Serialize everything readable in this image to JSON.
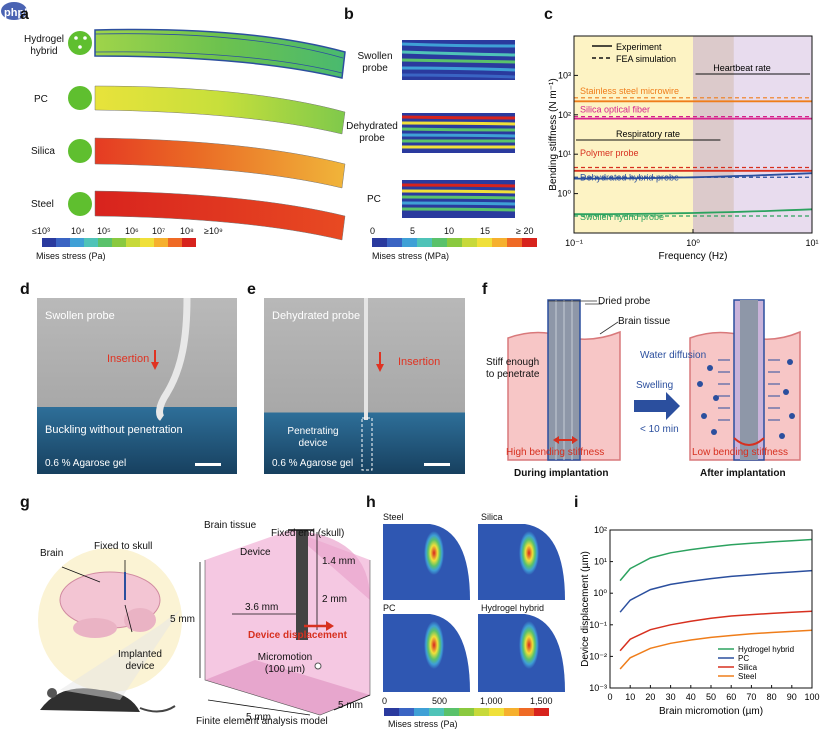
{
  "watermark": "php中文网",
  "panels": {
    "a": {
      "label": "a",
      "rows": [
        "Hydrogel hybrid",
        "PC",
        "Silica",
        "Steel"
      ],
      "colorbar_ticks": [
        "≤10³",
        "10⁴",
        "10⁵",
        "10⁶",
        "10⁷",
        "10⁸",
        "≥10⁹"
      ],
      "colorbar_title": "Mises stress (Pa)"
    },
    "b": {
      "label": "b",
      "rows": [
        "Swollen probe",
        "Dehydrated probe",
        "PC"
      ],
      "colorbar_ticks": [
        "0",
        "5",
        "10",
        "15",
        "≥ 20"
      ],
      "colorbar_title": "Mises stress (MPa)"
    },
    "c": {
      "label": "c"
    },
    "d": {
      "label": "d",
      "title": "Swollen probe",
      "insertion": "Insertion",
      "buckling": "Buckling without penetration",
      "gel": "0.6 % Agarose gel"
    },
    "e": {
      "label": "e",
      "title": "Dehydrated probe",
      "insertion": "Insertion",
      "device": "Penetrating device",
      "gel": "0.6 % Agarose gel"
    },
    "f": {
      "label": "f",
      "dried_probe": "Dried probe",
      "brain_tissue": "Brain tissue",
      "stiff": "Stiff enough to penetrate",
      "water": "Water diffusion",
      "swelling": "Swelling",
      "time": "< 10 min",
      "high": "High bending stiffness",
      "low": "Low bending stiffness",
      "during": "During implantation",
      "after": "After implantation"
    },
    "g": {
      "label": "g",
      "brain_tissue": "Brain tissue",
      "brain": "Brain",
      "fixed_skull": "Fixed to skull",
      "fixed_end": "Fixed end (skull)",
      "device": "Device",
      "d1": "1.4 mm",
      "d2": "2 mm",
      "d3": "3.6 mm",
      "d5a": "5 mm",
      "d5b": "5 mm",
      "d5c": "5 mm",
      "displacement": "Device displacement",
      "implanted": "Implanted device",
      "micromotion": "Micromotion (100 µm)",
      "caption": "Finite element analysis model"
    },
    "h": {
      "label": "h",
      "names": [
        "Steel",
        "Silica",
        "PC",
        "Hydrogel hybrid"
      ],
      "ticks": [
        "0",
        "500",
        "1,000",
        "1,500"
      ],
      "colorbar_title": "Mises stress (Pa)"
    },
    "i": {
      "label": "i"
    }
  },
  "colors": {
    "green": "#2ca25f",
    "blue": "#2b4f9e",
    "red": "#d7301f",
    "orange": "#ef7d1a",
    "magenta": "#d6238d",
    "respiratory": "#fdf3c4",
    "heartbeat": "#e8dcee"
  },
  "chart_data": [
    {
      "id": "c",
      "type": "line",
      "title": "",
      "xlabel": "Frequency (Hz)",
      "ylabel": "Bending stiffness (N m⁻¹)",
      "xscale": "log",
      "yscale": "log",
      "xlim": [
        0.1,
        10
      ],
      "ylim": [
        0.1,
        10000
      ],
      "x_ticks": [
        "10⁻¹",
        "10⁰",
        "10¹"
      ],
      "y_ticks": [
        "10⁰",
        "10¹",
        "10²",
        "10³"
      ],
      "legend": [
        "Experiment",
        "FEA simulation"
      ],
      "regions": [
        {
          "name": "Respiratory rate",
          "from": 0.1,
          "to": 1.0
        },
        {
          "name": "Heartbeat rate",
          "from": 1.0,
          "to": 10
        }
      ],
      "series": [
        {
          "name": "Stainless steel microwire",
          "color": "#ef7d1a",
          "experiment": 220,
          "fea": 270
        },
        {
          "name": "Silica optical fiber",
          "color": "#d6238d",
          "experiment": 80,
          "fea": 90
        },
        {
          "name": "Polymer probe",
          "color": "#d7301f",
          "experiment": 3.8,
          "fea": 4.6
        },
        {
          "name": "Dehydrated hybrid probe",
          "color": "#2b4f9e",
          "experiment_start": 2.4,
          "experiment_end": 3.3,
          "fea": 2.6
        },
        {
          "name": "Swollen hydrid probe",
          "color": "#2ca25f",
          "experiment_start": 0.3,
          "experiment_end": 0.4,
          "fea": 0.27
        }
      ]
    },
    {
      "id": "i",
      "type": "line",
      "xlabel": "Brain micromotion (µm)",
      "ylabel": "Device displacement (µm)",
      "xlim": [
        0,
        100
      ],
      "yscale": "log",
      "ylim": [
        0.001,
        100
      ],
      "x_ticks": [
        "0",
        "10",
        "20",
        "30",
        "40",
        "50",
        "60",
        "70",
        "80",
        "90",
        "100"
      ],
      "y_ticks": [
        "10⁻³",
        "10⁻²",
        "10⁻¹",
        "10⁰",
        "10¹",
        "10²"
      ],
      "x": [
        5,
        10,
        20,
        30,
        40,
        50,
        60,
        70,
        80,
        90,
        100
      ],
      "series": [
        {
          "name": "Hydrogel hybrid",
          "color": "#2ca25f",
          "values": [
            2.5,
            6,
            13,
            19,
            24,
            29,
            34,
            38,
            42,
            46,
            50
          ]
        },
        {
          "name": "PC",
          "color": "#2b4f9e",
          "values": [
            0.25,
            0.6,
            1.3,
            1.9,
            2.4,
            2.9,
            3.4,
            3.8,
            4.3,
            4.7,
            5.2
          ]
        },
        {
          "name": "Silica",
          "color": "#d7301f",
          "values": [
            0.015,
            0.035,
            0.07,
            0.1,
            0.13,
            0.16,
            0.19,
            0.21,
            0.23,
            0.25,
            0.27
          ]
        },
        {
          "name": "Steel",
          "color": "#ef7d1a",
          "values": [
            0.004,
            0.009,
            0.018,
            0.026,
            0.033,
            0.04,
            0.046,
            0.052,
            0.057,
            0.062,
            0.067
          ]
        }
      ]
    }
  ]
}
